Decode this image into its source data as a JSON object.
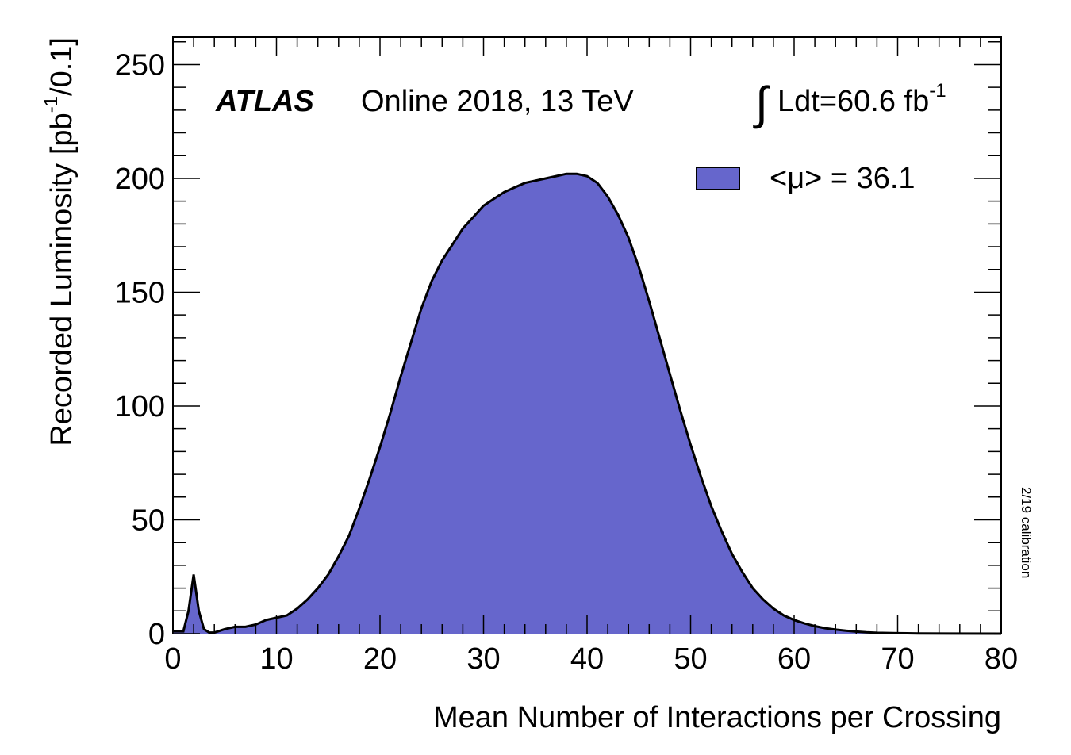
{
  "chart_data": {
    "type": "area",
    "title": "",
    "experiment": "ATLAS",
    "run_label": "Online 2018, 13 TeV",
    "luminosity_label": "Ldt=60.6 fb",
    "luminosity_exponent": "-1",
    "integral_symbol": "∫",
    "calibration_note": "2/19 calibration",
    "xlabel": "Mean Number of Interactions per Crossing",
    "ylabel": "Recorded Luminosity [pb",
    "ylabel_exponent": "-1",
    "ylabel_suffix": "/0.1]",
    "xlim": [
      0,
      80
    ],
    "ylim": [
      0,
      262
    ],
    "x_ticks": [
      "0",
      "10",
      "20",
      "30",
      "40",
      "50",
      "60",
      "70",
      "80"
    ],
    "y_ticks": [
      "0",
      "50",
      "100",
      "150",
      "200",
      "250"
    ],
    "grid": false,
    "legend_position": "top-right",
    "series": [
      {
        "name": "<μ> = 36.1",
        "color": "#6666cc",
        "x": [
          0,
          1,
          1.5,
          2,
          2.5,
          3,
          3.5,
          4,
          5,
          6,
          7,
          8,
          9,
          10,
          11,
          12,
          13,
          14,
          15,
          16,
          17,
          18,
          19,
          20,
          21,
          22,
          23,
          24,
          25,
          26,
          27,
          28,
          29,
          30,
          31,
          32,
          33,
          34,
          35,
          36,
          37,
          38,
          39,
          40,
          41,
          42,
          43,
          44,
          45,
          46,
          47,
          48,
          49,
          50,
          51,
          52,
          53,
          54,
          55,
          56,
          57,
          58,
          59,
          60,
          61,
          62,
          63,
          64,
          65,
          66,
          67,
          68,
          69,
          70,
          72,
          75,
          80
        ],
        "values": [
          1,
          1,
          10,
          26,
          10,
          2,
          0.5,
          0.5,
          2,
          3,
          3,
          4,
          6,
          7,
          8,
          11,
          15,
          20,
          26,
          34,
          43,
          55,
          68,
          82,
          97,
          113,
          128,
          143,
          155,
          164,
          171,
          178,
          183,
          188,
          191,
          194,
          196,
          198,
          199,
          200,
          201,
          202,
          202,
          201,
          198,
          192,
          184,
          174,
          161,
          146,
          130,
          114,
          98,
          83,
          69,
          56,
          45,
          35,
          27,
          20,
          15,
          11,
          8,
          6,
          4.5,
          3.3,
          2.4,
          1.8,
          1.3,
          0.9,
          0.6,
          0.4,
          0.3,
          0.2,
          0.1,
          0.05,
          0
        ]
      }
    ]
  }
}
